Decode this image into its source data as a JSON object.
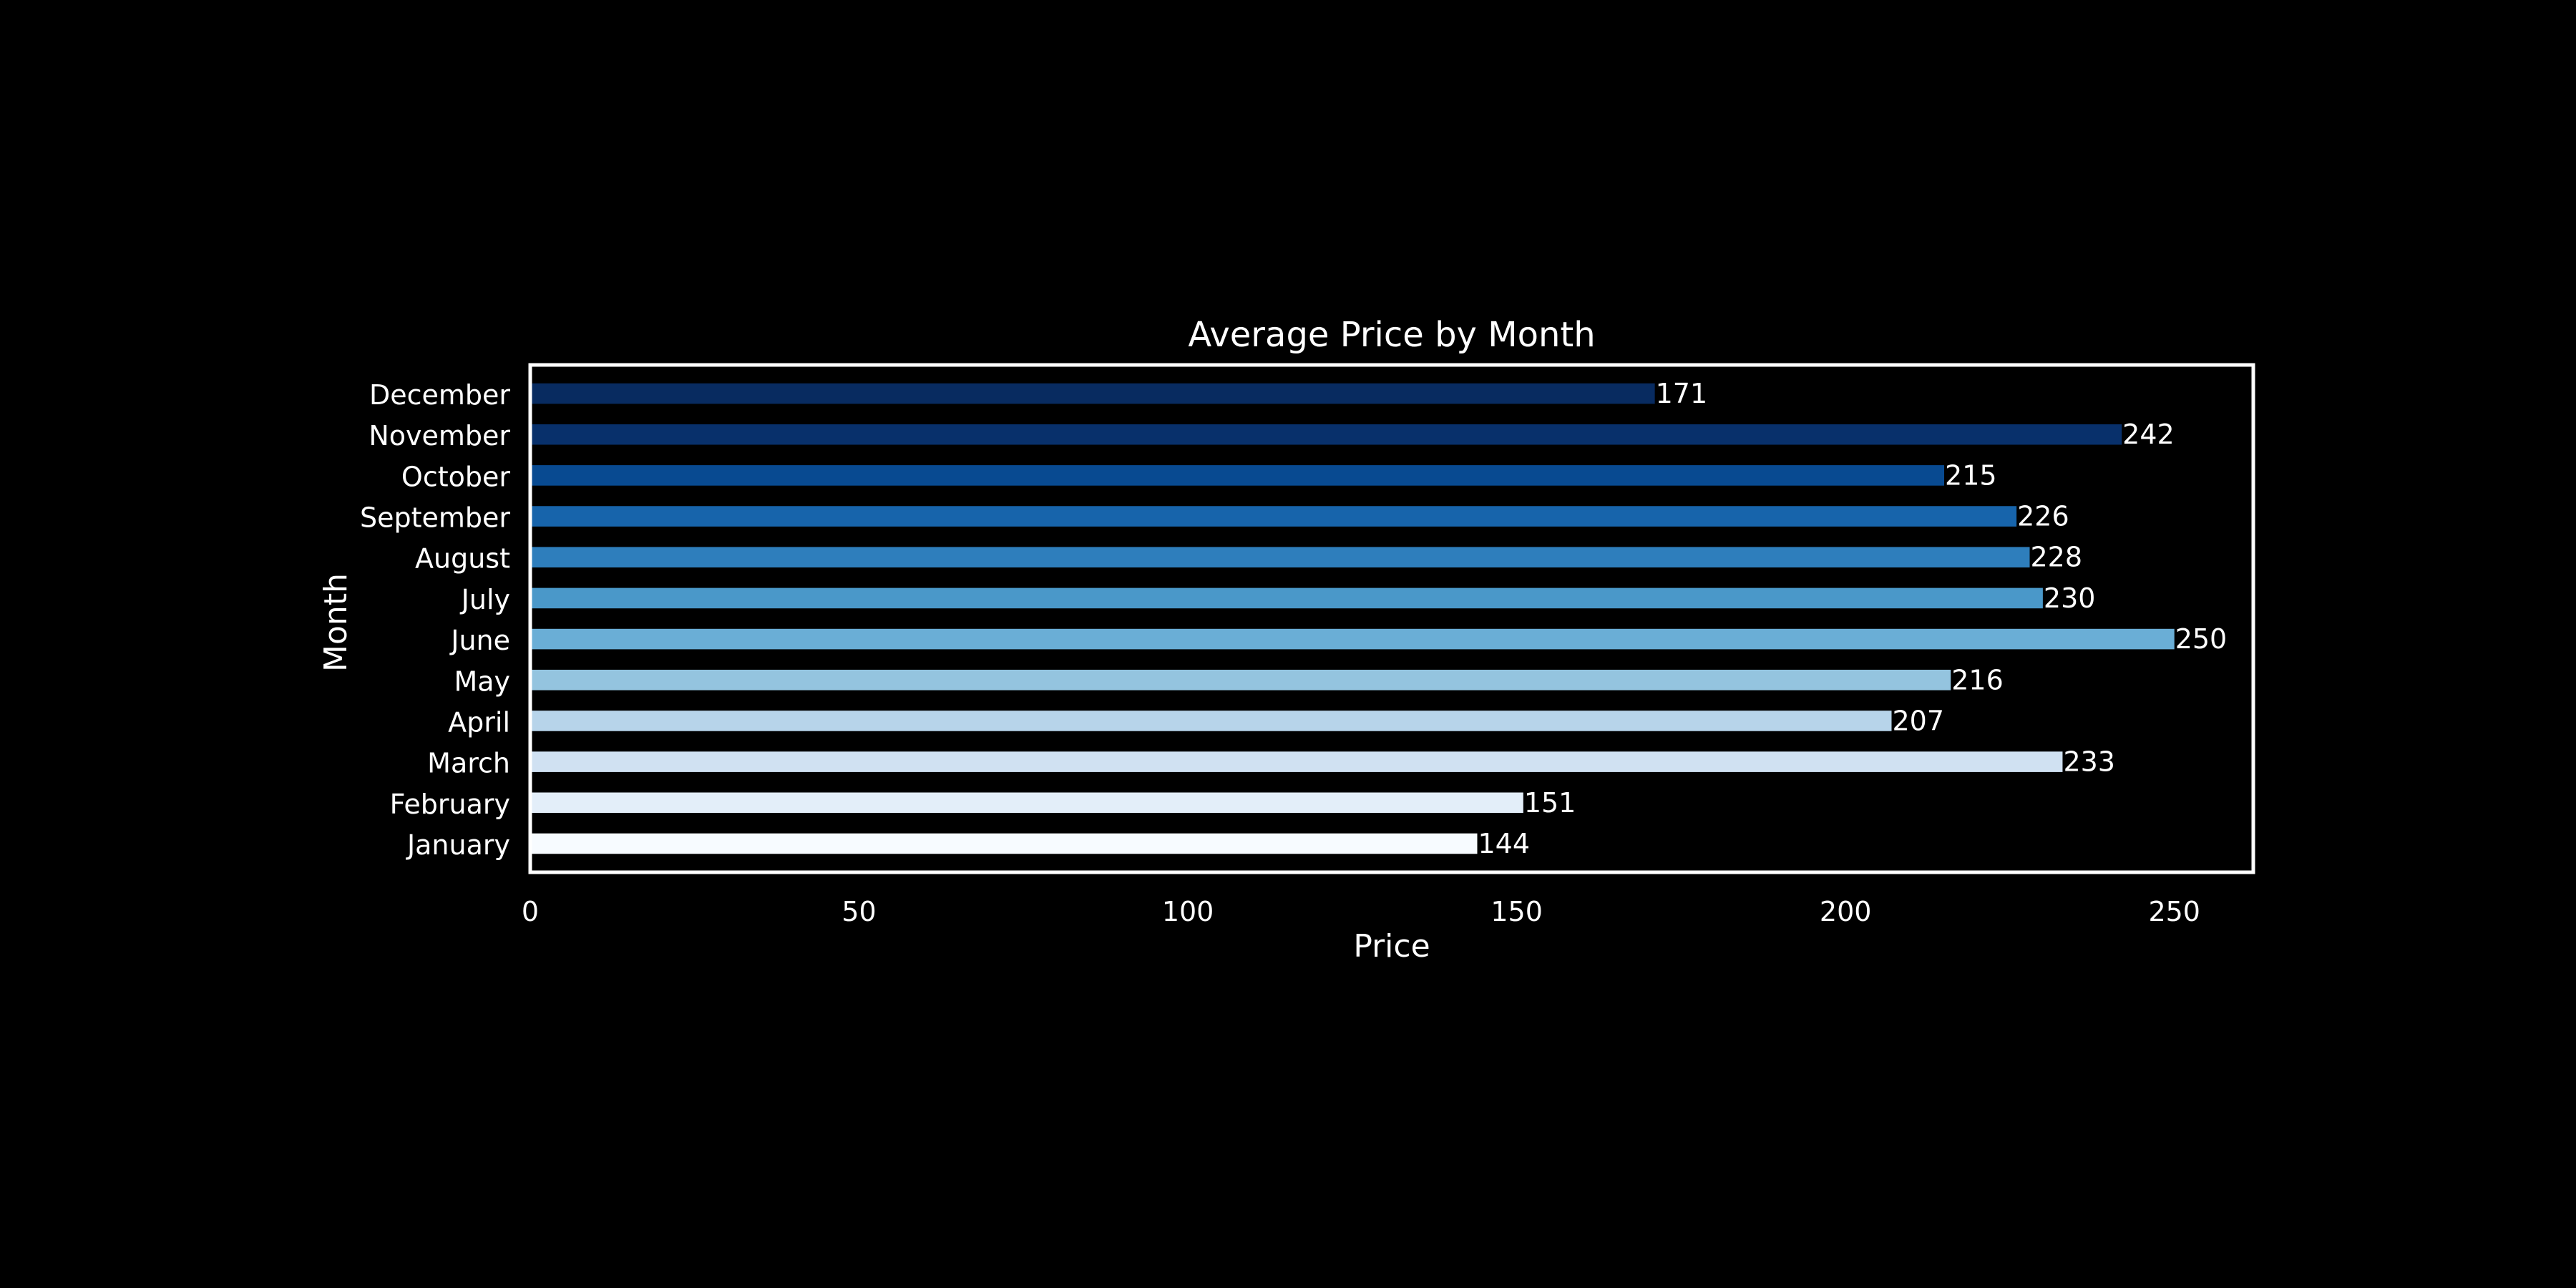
{
  "chart_data": {
    "type": "bar",
    "orientation": "horizontal",
    "title": "Average Price by Month",
    "xlabel": "Price",
    "ylabel": "Month",
    "categories": [
      "January",
      "February",
      "March",
      "April",
      "May",
      "June",
      "July",
      "August",
      "September",
      "October",
      "November",
      "December"
    ],
    "values": [
      144,
      151,
      233,
      207,
      216,
      250,
      230,
      228,
      226,
      215,
      242,
      171
    ],
    "colors": [
      "#f7fbff",
      "#e3eef9",
      "#d0e1f2",
      "#b7d4ea",
      "#94c4df",
      "#6aaed6",
      "#4a98c9",
      "#2e7ebc",
      "#1764ab",
      "#084a91",
      "#08306b",
      "#082b60"
    ],
    "xlim": [
      0,
      262
    ],
    "xticks": [
      0,
      50,
      100,
      150,
      200,
      250
    ],
    "xtick_labels": [
      "0",
      "50",
      "100",
      "150",
      "200",
      "250"
    ],
    "grid": false,
    "legend": "none",
    "background": "#000000",
    "foreground": "#ffffff"
  }
}
